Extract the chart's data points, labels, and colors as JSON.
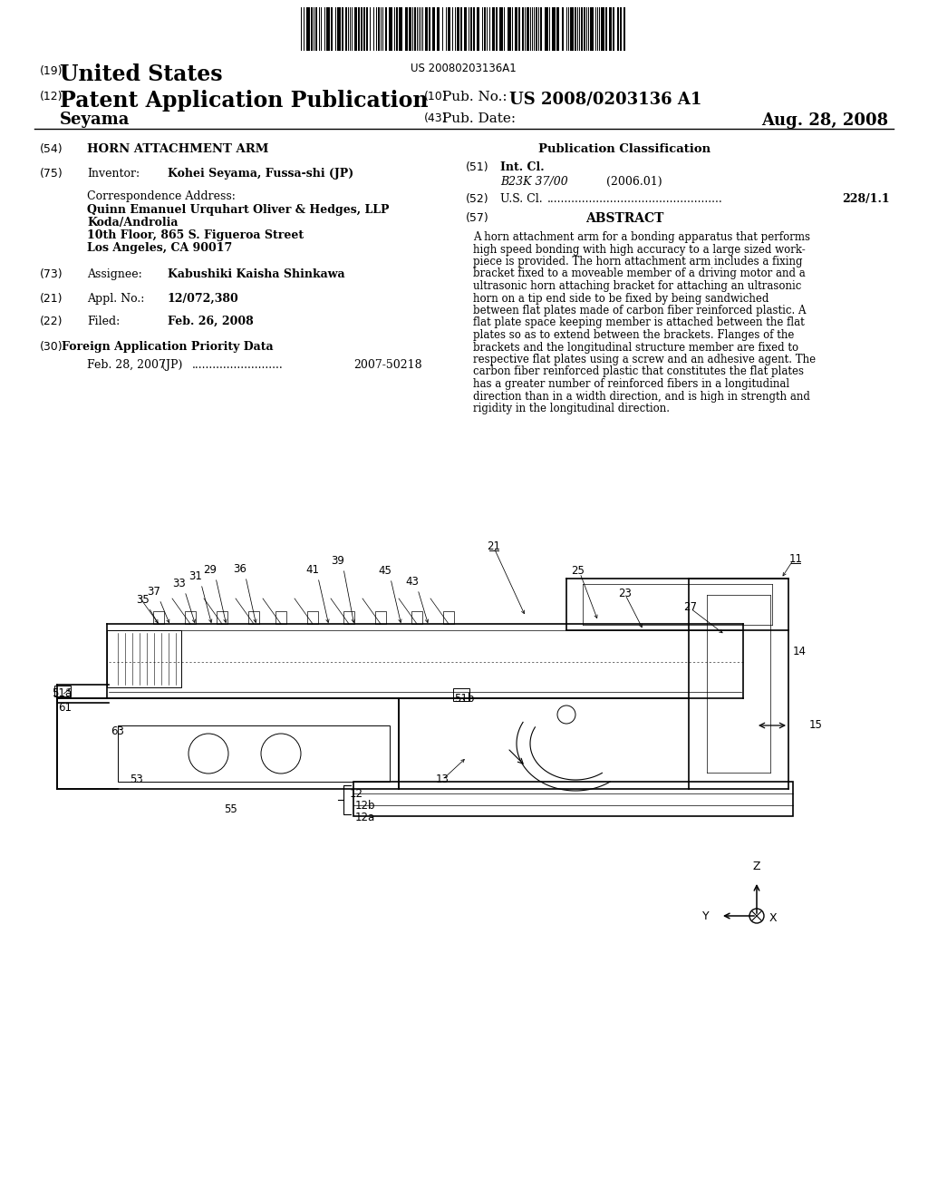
{
  "background_color": "#ffffff",
  "barcode_text": "US 20080203136A1",
  "tag19": "(19)",
  "united_states": "United States",
  "tag12": "(12)",
  "patent_app_pub": "Patent Application Publication",
  "tag10": "(10)",
  "pub_no_label": "Pub. No.:",
  "pub_no_value": "US 2008/0203136 A1",
  "inventor_name": "Seyama",
  "tag43": "(43)",
  "pub_date_label": "Pub. Date:",
  "pub_date_value": "Aug. 28, 2008",
  "tag54": "(54)",
  "title": "HORN ATTACHMENT ARM",
  "pub_class_title": "Publication Classification",
  "tag51": "(51)",
  "int_cl_label": "Int. Cl.",
  "int_cl_value": "B23K 37/00",
  "int_cl_year": "(2006.01)",
  "tag52": "(52)",
  "us_cl_label": "U.S. Cl.",
  "us_cl_value": "228/1.1",
  "tag75": "(75)",
  "inventor_label": "Inventor:",
  "inventor_value": "Kohei Seyama, Fussa-shi (JP)",
  "corr_addr_label": "Correspondence Address:",
  "corr_line1": "Quinn Emanuel Urquhart Oliver & Hedges, LLP",
  "corr_line2": "Koda/Androlia",
  "corr_line3": "10th Floor, 865 S. Figueroa Street",
  "corr_line4": "Los Angeles, CA 90017",
  "tag73": "(73)",
  "assignee_label": "Assignee:",
  "assignee_value": "Kabushiki Kaisha Shinkawa",
  "tag21": "(21)",
  "appl_label": "Appl. No.:",
  "appl_value": "12/072,380",
  "tag22": "(22)",
  "filed_label": "Filed:",
  "filed_value": "Feb. 26, 2008",
  "tag30": "(30)",
  "foreign_app_title": "Foreign Application Priority Data",
  "foreign_date": "Feb. 28, 2007",
  "foreign_country": "(JP)",
  "foreign_number": "2007-50218",
  "tag57": "(57)",
  "abstract_title": "ABSTRACT",
  "abstract_lines": [
    "A horn attachment arm for a bonding apparatus that performs",
    "high speed bonding with high accuracy to a large sized work-",
    "piece is provided. The horn attachment arm includes a fixing",
    "bracket fixed to a moveable member of a driving motor and a",
    "ultrasonic horn attaching bracket for attaching an ultrasonic",
    "horn on a tip end side to be fixed by being sandwiched",
    "between flat plates made of carbon fiber reinforced plastic. A",
    "flat plate space keeping member is attached between the flat",
    "plates so as to extend between the brackets. Flanges of the",
    "brackets and the longitudinal structure member are fixed to",
    "respective flat plates using a screw and an adhesive agent. The",
    "carbon fiber reinforced plastic that constitutes the flat plates",
    "has a greater number of reinforced fibers in a longitudinal",
    "direction than in a width direction, and is high in strength and",
    "rigidity in the longitudinal direction."
  ]
}
